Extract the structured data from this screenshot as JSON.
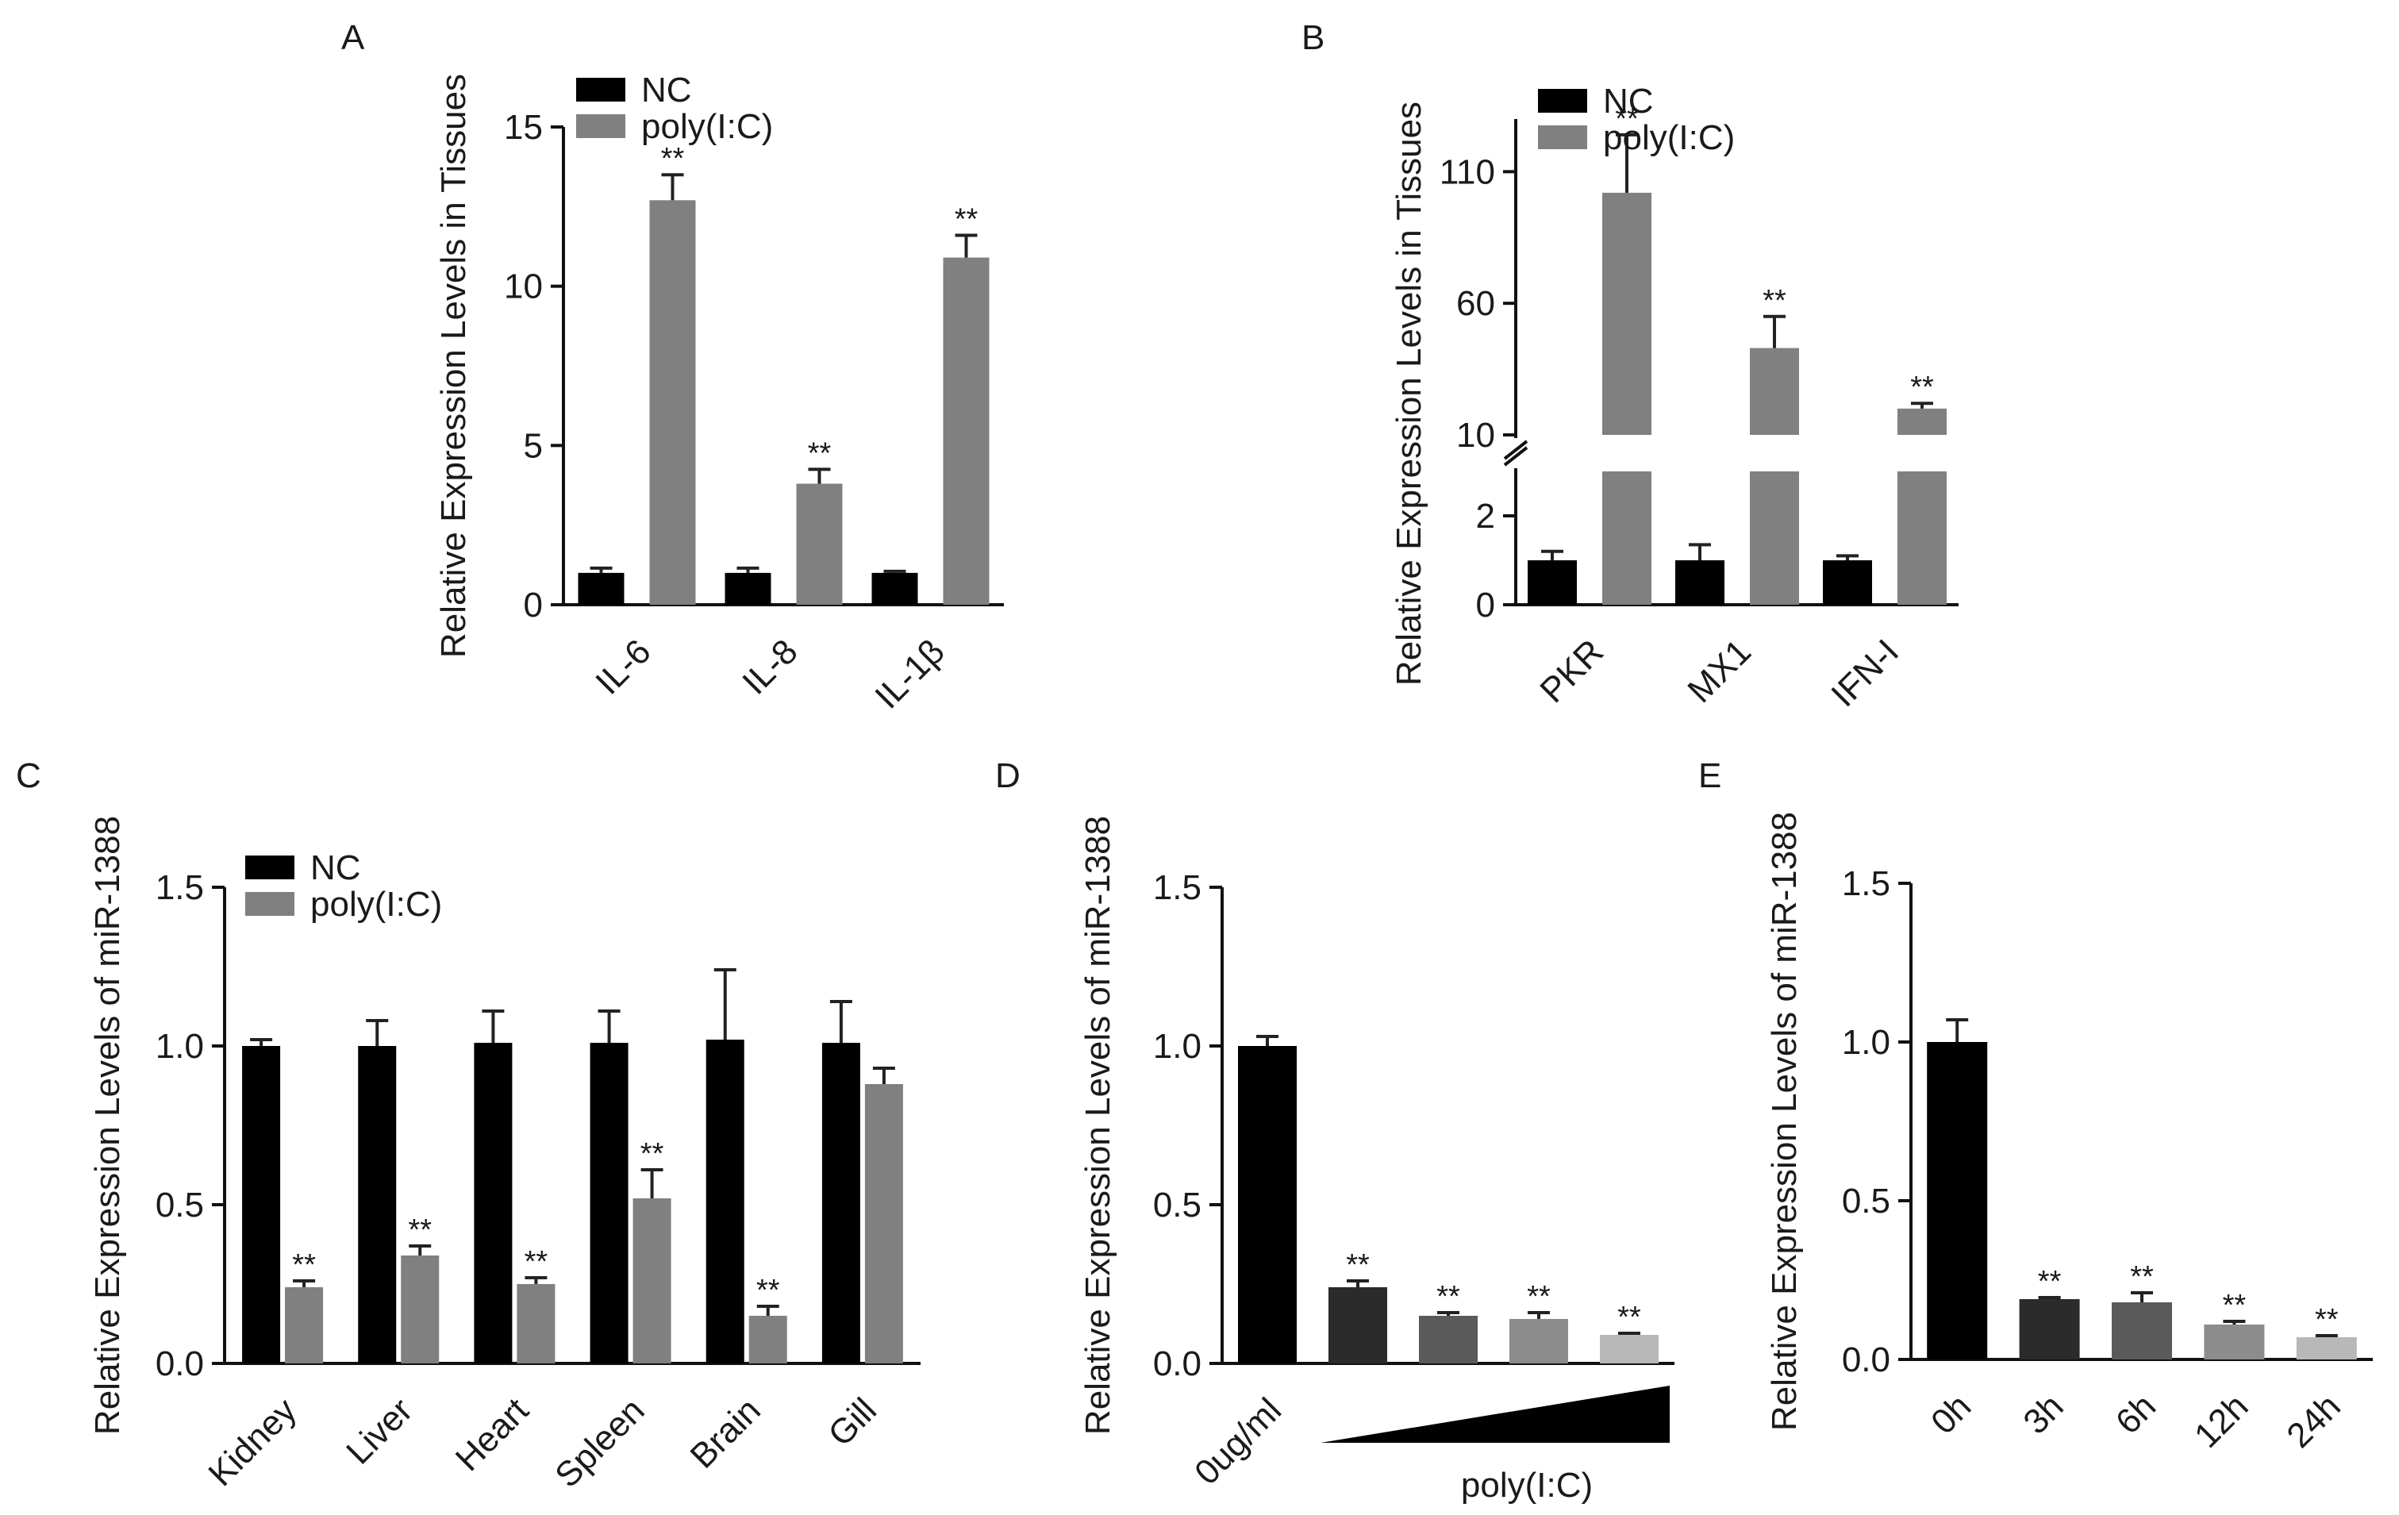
{
  "figure": {
    "colors": {
      "nc": "#000000",
      "treated": "#808080",
      "treatment_levels": [
        "#2b2b2b",
        "#5a5a5a",
        "#8c8c8c",
        "#b8b8b8"
      ]
    },
    "error_bar_color": "#222222"
  },
  "chart_data": [
    {
      "panel": "A",
      "type": "bar",
      "ylabel": "Relative Expression Levels in Tissues",
      "ylim": [
        0,
        15
      ],
      "yticks": [
        "0",
        "5",
        "10",
        "15"
      ],
      "categories": [
        "IL-6",
        "IL-8",
        "IL-1β"
      ],
      "legend": {
        "placement": "top-left"
      },
      "series": [
        {
          "name": "NC",
          "values": [
            1.0,
            1.0,
            1.0
          ],
          "errors": [
            0.15,
            0.15,
            0.05
          ],
          "sig": [
            "",
            "",
            ""
          ]
        },
        {
          "name": "poly(I:C)",
          "values": [
            12.7,
            3.8,
            10.9
          ],
          "errors": [
            0.8,
            0.45,
            0.7
          ],
          "sig": [
            "**",
            "**",
            "**"
          ]
        }
      ]
    },
    {
      "panel": "B",
      "type": "bar",
      "ylabel": "Relative Expression Levels in Tissues",
      "axis_break": {
        "lower": [
          0,
          3
        ],
        "upper": [
          10,
          130
        ]
      },
      "yticks": [
        "0",
        "2",
        "10",
        "60",
        "110"
      ],
      "categories": [
        "PKR",
        "MX1",
        "IFN-I"
      ],
      "legend": {
        "placement": "top-left"
      },
      "series": [
        {
          "name": "NC",
          "values": [
            1.0,
            1.0,
            1.0
          ],
          "errors": [
            0.2,
            0.35,
            0.1
          ],
          "sig": [
            "",
            "",
            ""
          ]
        },
        {
          "name": "poly(I:C)",
          "values": [
            102,
            43,
            20
          ],
          "errors": [
            22,
            12,
            2
          ],
          "sig": [
            "**",
            "**",
            "**"
          ]
        }
      ]
    },
    {
      "panel": "C",
      "type": "bar",
      "ylabel": "Relative Expression Levels of miR-1388",
      "ylim": [
        0,
        1.5
      ],
      "yticks": [
        "0.0",
        "0.5",
        "1.0",
        "1.5"
      ],
      "categories": [
        "Kidney",
        "Liver",
        "Heart",
        "Spleen",
        "Brain",
        "Gill"
      ],
      "legend": {
        "placement": "top-left"
      },
      "series": [
        {
          "name": "NC",
          "values": [
            1.0,
            1.0,
            1.01,
            1.01,
            1.02,
            1.01
          ],
          "errors": [
            0.02,
            0.08,
            0.1,
            0.1,
            0.22,
            0.13
          ],
          "sig": [
            "",
            "",
            "",
            "",
            "",
            ""
          ]
        },
        {
          "name": "poly(I:C)",
          "values": [
            0.24,
            0.34,
            0.25,
            0.52,
            0.15,
            0.88
          ],
          "errors": [
            0.02,
            0.03,
            0.02,
            0.09,
            0.03,
            0.05
          ],
          "sig": [
            "**",
            "**",
            "**",
            "**",
            "**",
            ""
          ]
        }
      ]
    },
    {
      "panel": "D",
      "type": "bar",
      "ylabel": "Relative Expression Levels of miR-1388",
      "ylim": [
        0,
        1.5
      ],
      "yticks": [
        "0.0",
        "0.5",
        "1.0",
        "1.5"
      ],
      "categories": [
        "0ug/ml",
        "",
        "",
        "",
        ""
      ],
      "values": [
        1.0,
        0.24,
        0.15,
        0.14,
        0.09
      ],
      "errors": [
        0.03,
        0.02,
        0.01,
        0.02,
        0.005
      ],
      "sig": [
        "",
        "**",
        "**",
        "**",
        "**"
      ],
      "gradient_label": "poly(I:C)"
    },
    {
      "panel": "E",
      "type": "bar",
      "ylabel": "Relative Expression Levels of miR-1388",
      "ylim": [
        0,
        1.5
      ],
      "yticks": [
        "0.0",
        "0.5",
        "1.0",
        "1.5"
      ],
      "categories": [
        "0h",
        "3h",
        "6h",
        "12h",
        "24h"
      ],
      "values": [
        1.0,
        0.19,
        0.18,
        0.11,
        0.07
      ],
      "errors": [
        0.07,
        0.005,
        0.03,
        0.01,
        0.005
      ],
      "sig": [
        "",
        "**",
        "**",
        "**",
        "**"
      ]
    }
  ]
}
